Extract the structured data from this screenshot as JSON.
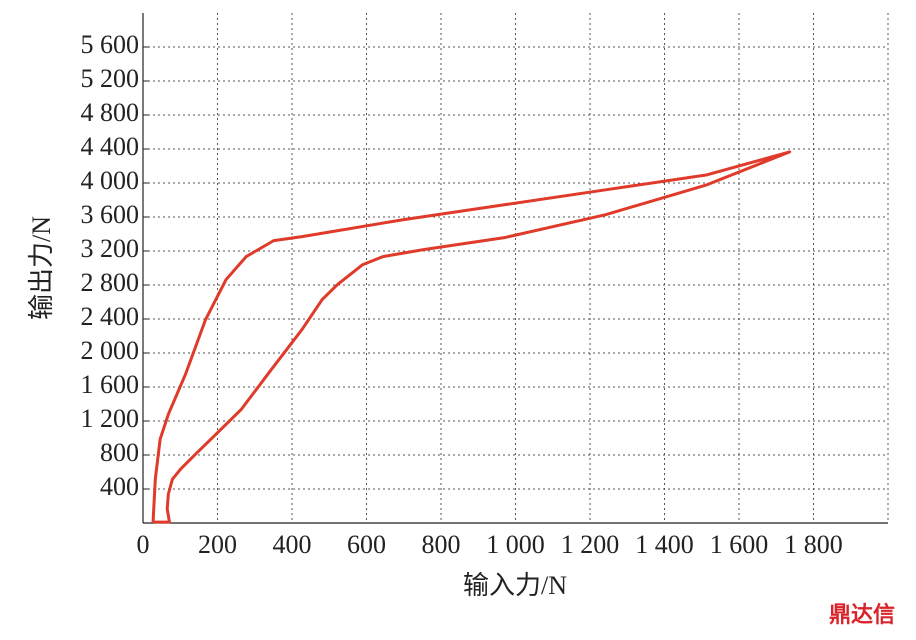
{
  "chart_data": {
    "type": "line",
    "x_label": "输入力/N",
    "y_label": "输出力/N",
    "watermark": "鼎达信",
    "x": [
      27,
      33,
      46,
      68,
      114,
      168,
      223,
      277,
      351,
      427,
      698,
      970,
      1242,
      1514,
      1736,
      1514,
      1242,
      970,
      753,
      644,
      590,
      522,
      481,
      427,
      345,
      264,
      196,
      141,
      101,
      79,
      68,
      65,
      71,
      27
    ],
    "series": [
      {
        "color": "#e03a2a",
        "values": [
          10,
          516,
          986,
          1279,
          1749,
          2394,
          2864,
          3134,
          3322,
          3369,
          3568,
          3744,
          3920,
          4096,
          4366,
          3979,
          3627,
          3357,
          3216,
          3134,
          3040,
          2805,
          2629,
          2277,
          1808,
          1338,
          1045,
          810,
          634,
          516,
          340,
          164,
          12,
          10
        ]
      }
    ],
    "xlim": [
      0,
      2000
    ],
    "ylim": [
      0,
      6000
    ],
    "xticks": [
      0,
      200,
      400,
      600,
      800,
      {
        "value": 1000,
        "label": "1 000"
      },
      {
        "value": 1200,
        "label": "1 200"
      },
      {
        "value": 1400,
        "label": "1 400"
      },
      {
        "value": 1600,
        "label": "1 600"
      },
      {
        "value": 1800,
        "label": "1 800"
      }
    ],
    "yticks": [
      400,
      800,
      {
        "value": 1200,
        "label": "1 200"
      },
      {
        "value": 1600,
        "label": "1 600"
      },
      {
        "value": 2000,
        "label": "2 000"
      },
      {
        "value": 2400,
        "label": "2 400"
      },
      {
        "value": 2800,
        "label": "2 800"
      },
      {
        "value": 3200,
        "label": "3 200"
      },
      {
        "value": 3600,
        "label": "3 600"
      },
      {
        "value": 4000,
        "label": "4 000"
      },
      {
        "value": 4400,
        "label": "4 400"
      },
      {
        "value": 4800,
        "label": "4 800"
      },
      {
        "value": 5200,
        "label": "5 200"
      },
      {
        "value": 5600,
        "label": "5 600"
      }
    ],
    "grid": true
  }
}
